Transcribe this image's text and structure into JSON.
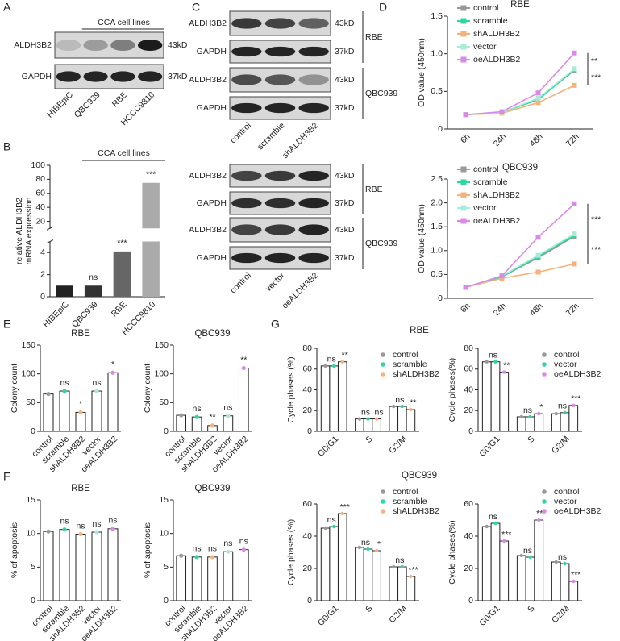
{
  "panel_letters": [
    "A",
    "B",
    "C",
    "D",
    "E",
    "F",
    "G"
  ],
  "blots": [
    {
      "header": "CCA cell lines",
      "rows": [
        "ALDH3B2",
        "GAPDH"
      ],
      "sizes": [
        "43kD",
        "37kD"
      ],
      "lanes": [
        "HIBEpiC",
        "QBC939",
        "RBE",
        "HCCC9810"
      ]
    },
    {
      "rows": [
        "ALDH3B2",
        "GAPDH",
        "ALDH3B2",
        "GAPDH"
      ],
      "sizes": [
        "43kD",
        "37kD",
        "43kD",
        "37kD"
      ],
      "groups": [
        "RBE",
        "QBC939"
      ],
      "lanes": [
        "control",
        "scramble",
        "shALDH3B2"
      ]
    },
    {
      "rows": [
        "ALDH3B2",
        "GAPDH",
        "ALDH3B2",
        "GAPDH"
      ],
      "sizes": [
        "43kD",
        "37kD",
        "43kD",
        "37kD"
      ],
      "groups": [
        "RBE",
        "QBC939"
      ],
      "lanes": [
        "control",
        "vector",
        "oeALDH3B2"
      ]
    }
  ],
  "chart_data": [
    {
      "type": "brokenbar",
      "header": "CCA cell lines",
      "ylabel": [
        "relative ALDH3B2",
        "mRNA expression"
      ],
      "categories": [
        "HIBEpiC",
        "QBC939",
        "RBE",
        "HCCC9810"
      ],
      "values": [
        1,
        1.0,
        4.1,
        75
      ],
      "colors": [
        "#222222",
        "#333333",
        "#666666",
        "#aaaaaa"
      ],
      "annotations": [
        null,
        "ns",
        "***",
        "***"
      ],
      "ylim": [
        0,
        100
      ],
      "axis_break": [
        5,
        10
      ],
      "yticks": [
        0,
        2,
        4,
        20,
        40,
        60,
        80,
        100
      ]
    },
    {
      "type": "line",
      "title": "RBE",
      "ylabel": "OD  value (450nm)",
      "categories": [
        "6h",
        "24h",
        "48h",
        "72h"
      ],
      "ylim": [
        0,
        1.5
      ],
      "yticks": [
        0,
        0.5,
        {
          "value": 1,
          "label": "1.0"
        },
        1.5
      ],
      "annotations": [
        "**",
        "***"
      ],
      "series": [
        {
          "name": "control",
          "color": "#999999",
          "values": [
            0.19,
            0.22,
            0.4,
            0.78
          ]
        },
        {
          "name": "scramble",
          "color": "#2fd6a0",
          "values": [
            0.19,
            0.22,
            0.39,
            0.79
          ]
        },
        {
          "name": "shALDH3B2",
          "color": "#f5b27a",
          "values": [
            0.19,
            0.21,
            0.35,
            0.58
          ]
        },
        {
          "name": "vector",
          "color": "#a8ecd8",
          "values": [
            0.19,
            0.22,
            0.41,
            0.8
          ]
        },
        {
          "name": "oeALDH3B2",
          "color": "#d98ae8",
          "values": [
            0.19,
            0.23,
            0.48,
            1.01
          ]
        }
      ]
    },
    {
      "type": "line",
      "title": "QBC939",
      "ylabel": "OD  value (450nm)",
      "categories": [
        "6h",
        "24h",
        "48h",
        "72h"
      ],
      "ylim": [
        0,
        2.5
      ],
      "yticks": [
        0,
        0.5,
        {
          "value": 1,
          "label": "1.0"
        },
        1.5,
        {
          "value": 2,
          "label": "2.0"
        },
        2.5
      ],
      "annotations": [
        "***",
        "***"
      ],
      "series": [
        {
          "name": "control",
          "color": "#999999",
          "values": [
            0.23,
            0.45,
            0.85,
            1.3
          ]
        },
        {
          "name": "scramble",
          "color": "#2fd6a0",
          "values": [
            0.23,
            0.45,
            0.88,
            1.32
          ]
        },
        {
          "name": "shALDH3B2",
          "color": "#f5b27a",
          "values": [
            0.23,
            0.42,
            0.55,
            0.72
          ]
        },
        {
          "name": "vector",
          "color": "#a8ecd8",
          "values": [
            0.23,
            0.47,
            0.9,
            1.35
          ]
        },
        {
          "name": "oeALDH3B2",
          "color": "#d98ae8",
          "values": [
            0.23,
            0.47,
            1.28,
            1.98
          ]
        }
      ]
    },
    {
      "type": "bar",
      "title": "RBE",
      "ylabel": "Colony count",
      "categories": [
        "control",
        "scramble",
        "shALDH3B2",
        "vector",
        "oeALDH3B2"
      ],
      "values": [
        65,
        70,
        33,
        70,
        102
      ],
      "colors": [
        "#999999",
        "#2fd6a0",
        "#f5b27a",
        "#a8ecd8",
        "#d98ae8"
      ],
      "annotations": [
        null,
        "ns",
        "*",
        "ns",
        "*"
      ],
      "ylim": [
        0,
        150
      ],
      "yticks": [
        0,
        50,
        100,
        150
      ]
    },
    {
      "type": "bar",
      "title": "QBC939",
      "ylabel": "Colony count",
      "categories": [
        "control",
        "scramble",
        "shALDH3B2",
        "vector",
        "oeALDH3B2"
      ],
      "values": [
        28,
        25,
        10,
        27,
        110
      ],
      "colors": [
        "#999999",
        "#2fd6a0",
        "#f5b27a",
        "#a8ecd8",
        "#d98ae8"
      ],
      "annotations": [
        null,
        "ns",
        "**",
        "ns",
        "**"
      ],
      "ylim": [
        0,
        150
      ],
      "yticks": [
        0,
        50,
        100,
        150
      ]
    },
    {
      "type": "bar",
      "title": "RBE",
      "ylabel": "% of apoptosis",
      "categories": [
        "control",
        "scramble",
        "shALDH3B2",
        "vector",
        "oeALDH3B2"
      ],
      "values": [
        10.3,
        10.6,
        9.9,
        10.2,
        10.7
      ],
      "colors": [
        "#999999",
        "#2fd6a0",
        "#f5b27a",
        "#a8ecd8",
        "#d98ae8"
      ],
      "annotations": [
        null,
        "ns",
        "ns",
        "ns",
        "ns"
      ],
      "ylim": [
        0,
        15
      ],
      "yticks": [
        0,
        5,
        10,
        15
      ]
    },
    {
      "type": "bar",
      "title": "QBC939",
      "ylabel": "% of apoptosis",
      "categories": [
        "control",
        "scramble",
        "shALDH3B2",
        "vector",
        "oeALDH3B2"
      ],
      "values": [
        6.7,
        6.5,
        6.5,
        7.3,
        7.6
      ],
      "colors": [
        "#999999",
        "#2fd6a0",
        "#f5b27a",
        "#a8ecd8",
        "#d98ae8"
      ],
      "annotations": [
        null,
        "ns",
        "ns",
        "ns",
        "ns"
      ],
      "ylim": [
        0,
        15
      ],
      "yticks": [
        0,
        5,
        10,
        15
      ]
    },
    {
      "type": "groupbar",
      "title": "RBE",
      "ylabel": "Cycle phases (%)",
      "categories": [
        "G0/G1",
        "S",
        "G2/M"
      ],
      "ylim": [
        0,
        80
      ],
      "yticks": [
        0,
        20,
        40,
        60,
        80
      ],
      "annotations": [
        [
          "ns",
          "**"
        ],
        [
          "ns",
          "ns"
        ],
        [
          "ns",
          "**"
        ]
      ],
      "series": [
        {
          "name": "control",
          "color": "#999999",
          "values": [
            63,
            12,
            24
          ]
        },
        {
          "name": "scramble",
          "color": "#2fd6a0",
          "values": [
            63,
            12,
            24
          ]
        },
        {
          "name": "shALDH3B2",
          "color": "#f5b27a",
          "values": [
            67,
            12,
            21
          ]
        }
      ]
    },
    {
      "type": "groupbar",
      "ylabel": "Cycle phases(%)",
      "categories": [
        "G0/G1",
        "S",
        "G2/M"
      ],
      "ylim": [
        0,
        80
      ],
      "yticks": [
        0,
        20,
        40,
        60,
        80
      ],
      "annotations": [
        [
          "ns",
          "**"
        ],
        [
          "ns",
          "*"
        ],
        [
          "ns",
          "***"
        ]
      ],
      "series": [
        {
          "name": "control",
          "color": "#999999",
          "values": [
            67,
            14,
            17
          ]
        },
        {
          "name": "vector",
          "color": "#2fd6a0",
          "values": [
            67,
            14,
            18
          ]
        },
        {
          "name": "oeALDH3B2",
          "color": "#d98ae8",
          "values": [
            57,
            17,
            25
          ]
        }
      ]
    },
    {
      "type": "groupbar",
      "title": "QBC939",
      "ylabel": "Cycle phases (%)",
      "categories": [
        "G0/G1",
        "S",
        "G2/M"
      ],
      "ylim": [
        0,
        60
      ],
      "yticks": [
        0,
        20,
        40,
        60
      ],
      "annotations": [
        [
          "ns",
          "***"
        ],
        [
          "ns",
          "*"
        ],
        [
          "ns",
          "***"
        ]
      ],
      "series": [
        {
          "name": "control",
          "color": "#999999",
          "values": [
            45,
            33,
            21
          ]
        },
        {
          "name": "scramble",
          "color": "#2fd6a0",
          "values": [
            46,
            32,
            21
          ]
        },
        {
          "name": "shALDH3B2",
          "color": "#f5b27a",
          "values": [
            54,
            31,
            15
          ]
        }
      ]
    },
    {
      "type": "groupbar",
      "ylabel": "Cycle phases(%)",
      "categories": [
        "G0/G1",
        "S",
        "G2/M"
      ],
      "ylim": [
        0,
        60
      ],
      "yticks": [
        0,
        20,
        40,
        60
      ],
      "annotations": [
        [
          "ns",
          "***"
        ],
        [
          "ns",
          "***"
        ],
        [
          "ns",
          "***"
        ]
      ],
      "series": [
        {
          "name": "control",
          "color": "#999999",
          "values": [
            46,
            28,
            24
          ]
        },
        {
          "name": "vector",
          "color": "#2fd6a0",
          "values": [
            48,
            27,
            23
          ]
        },
        {
          "name": "oeALDH3B2",
          "color": "#d98ae8",
          "values": [
            37,
            50,
            12
          ]
        }
      ]
    }
  ]
}
